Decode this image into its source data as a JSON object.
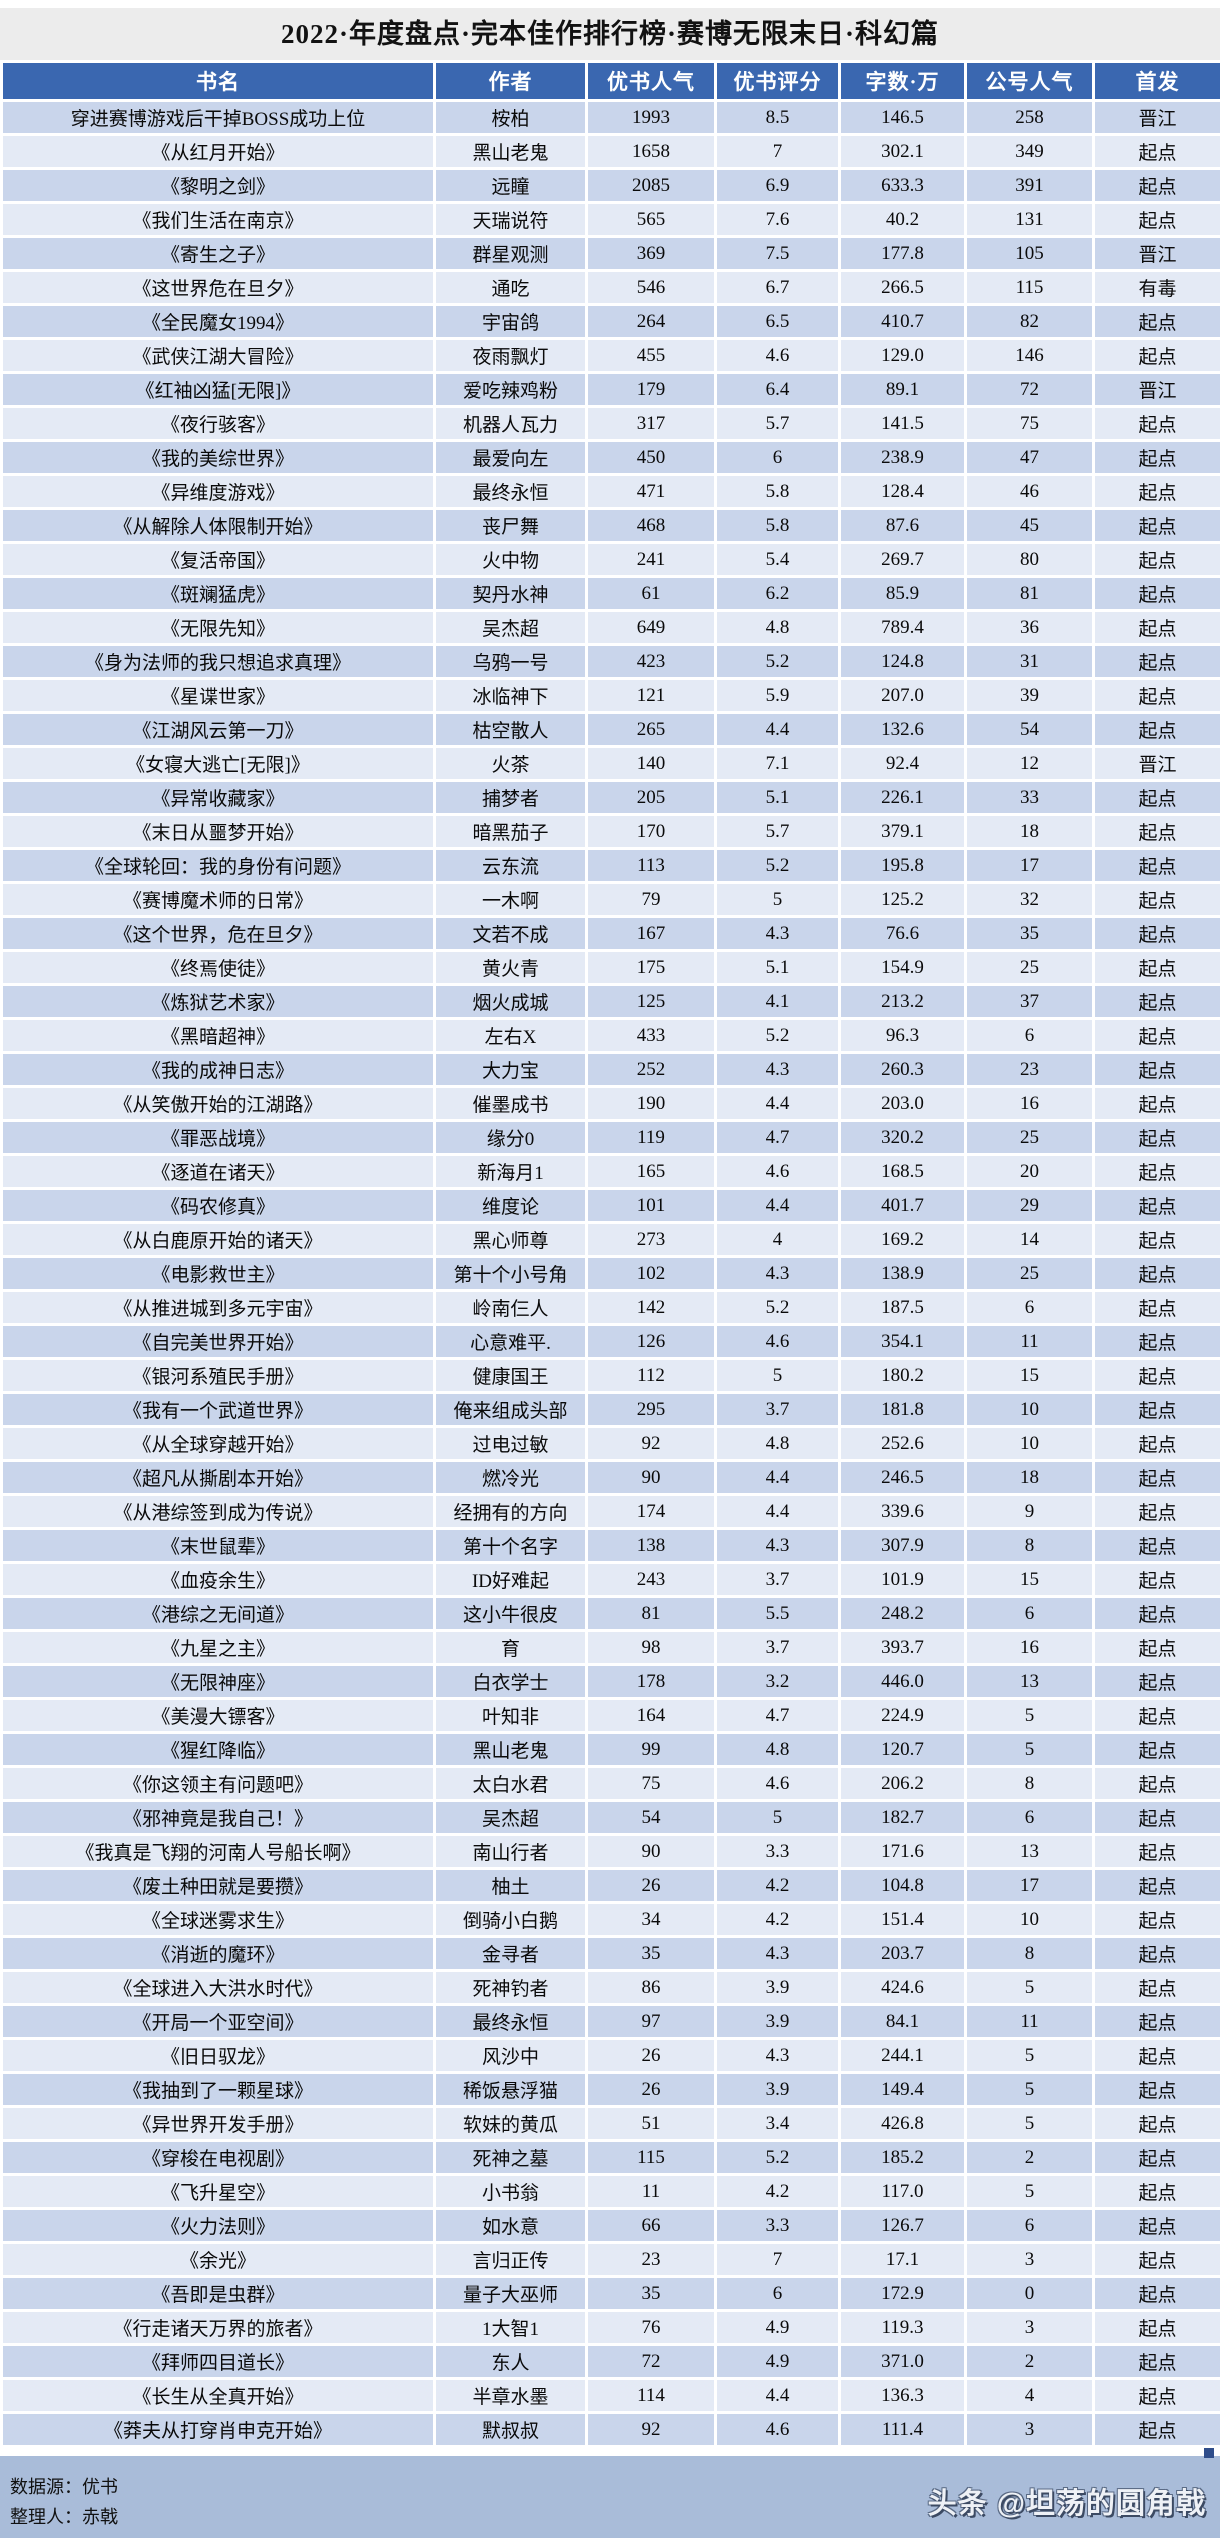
{
  "title": "2022·年度盘点·完本佳作排行榜·赛博无限末日·科幻篇",
  "colors": {
    "header_bg": "#3a67b0",
    "row_odd": "#c9d5eb",
    "row_even": "#e4eaf5",
    "title_bg": "#ececec",
    "footer_bg": "#a9bcd9"
  },
  "table": {
    "columns": [
      "书名",
      "作者",
      "优书人气",
      "优书评分",
      "字数·万",
      "公号人气",
      "首发"
    ],
    "rows": [
      [
        "穿进赛博游戏后干掉BOSS成功上位",
        "桉柏",
        "1993",
        "8.5",
        "146.5",
        "258",
        "晋江"
      ],
      [
        "《从红月开始》",
        "黑山老鬼",
        "1658",
        "7",
        "302.1",
        "349",
        "起点"
      ],
      [
        "《黎明之剑》",
        "远瞳",
        "2085",
        "6.9",
        "633.3",
        "391",
        "起点"
      ],
      [
        "《我们生活在南京》",
        "天瑞说符",
        "565",
        "7.6",
        "40.2",
        "131",
        "起点"
      ],
      [
        "《寄生之子》",
        "群星观测",
        "369",
        "7.5",
        "177.8",
        "105",
        "晋江"
      ],
      [
        "《这世界危在旦夕》",
        "通吃",
        "546",
        "6.7",
        "266.5",
        "115",
        "有毒"
      ],
      [
        "《全民魔女1994》",
        "宇宙鸽",
        "264",
        "6.5",
        "410.7",
        "82",
        "起点"
      ],
      [
        "《武侠江湖大冒险》",
        "夜雨飘灯",
        "455",
        "4.6",
        "129.0",
        "146",
        "起点"
      ],
      [
        "《红袖凶猛[无限]》",
        "爱吃辣鸡粉",
        "179",
        "6.4",
        "89.1",
        "72",
        "晋江"
      ],
      [
        "《夜行骇客》",
        "机器人瓦力",
        "317",
        "5.7",
        "141.5",
        "75",
        "起点"
      ],
      [
        "《我的美综世界》",
        "最爱向左",
        "450",
        "6",
        "238.9",
        "47",
        "起点"
      ],
      [
        "《异维度游戏》",
        "最终永恒",
        "471",
        "5.8",
        "128.4",
        "46",
        "起点"
      ],
      [
        "《从解除人体限制开始》",
        "丧尸舞",
        "468",
        "5.8",
        "87.6",
        "45",
        "起点"
      ],
      [
        "《复活帝国》",
        "火中物",
        "241",
        "5.4",
        "269.7",
        "80",
        "起点"
      ],
      [
        "《斑斓猛虎》",
        "契丹水神",
        "61",
        "6.2",
        "85.9",
        "81",
        "起点"
      ],
      [
        "《无限先知》",
        "吴杰超",
        "649",
        "4.8",
        "789.4",
        "36",
        "起点"
      ],
      [
        "《身为法师的我只想追求真理》",
        "乌鸦一号",
        "423",
        "5.2",
        "124.8",
        "31",
        "起点"
      ],
      [
        "《星谍世家》",
        "冰临神下",
        "121",
        "5.9",
        "207.0",
        "39",
        "起点"
      ],
      [
        "《江湖风云第一刀》",
        "枯空散人",
        "265",
        "4.4",
        "132.6",
        "54",
        "起点"
      ],
      [
        "《女寝大逃亡[无限]》",
        "火茶",
        "140",
        "7.1",
        "92.4",
        "12",
        "晋江"
      ],
      [
        "《异常收藏家》",
        "捕梦者",
        "205",
        "5.1",
        "226.1",
        "33",
        "起点"
      ],
      [
        "《末日从噩梦开始》",
        "暗黑茄子",
        "170",
        "5.7",
        "379.1",
        "18",
        "起点"
      ],
      [
        "《全球轮回：我的身份有问题》",
        "云东流",
        "113",
        "5.2",
        "195.8",
        "17",
        "起点"
      ],
      [
        "《赛博魔术师的日常》",
        "一木啊",
        "79",
        "5",
        "125.2",
        "32",
        "起点"
      ],
      [
        "《这个世界，危在旦夕》",
        "文若不成",
        "167",
        "4.3",
        "76.6",
        "35",
        "起点"
      ],
      [
        "《终焉使徒》",
        "黄火青",
        "175",
        "5.1",
        "154.9",
        "25",
        "起点"
      ],
      [
        "《炼狱艺术家》",
        "烟火成城",
        "125",
        "4.1",
        "213.2",
        "37",
        "起点"
      ],
      [
        "《黑暗超神》",
        "左右X",
        "433",
        "5.2",
        "96.3",
        "6",
        "起点"
      ],
      [
        "《我的成神日志》",
        "大力宝",
        "252",
        "4.3",
        "260.3",
        "23",
        "起点"
      ],
      [
        "《从笑傲开始的江湖路》",
        "催墨成书",
        "190",
        "4.4",
        "203.0",
        "16",
        "起点"
      ],
      [
        "《罪恶战境》",
        "缘分0",
        "119",
        "4.7",
        "320.2",
        "25",
        "起点"
      ],
      [
        "《逐道在诸天》",
        "新海月1",
        "165",
        "4.6",
        "168.5",
        "20",
        "起点"
      ],
      [
        "《码农修真》",
        "维度论",
        "101",
        "4.4",
        "401.7",
        "29",
        "起点"
      ],
      [
        "《从白鹿原开始的诸天》",
        "黑心师尊",
        "273",
        "4",
        "169.2",
        "14",
        "起点"
      ],
      [
        "《电影救世主》",
        "第十个小号角",
        "102",
        "4.3",
        "138.9",
        "25",
        "起点"
      ],
      [
        "《从推进城到多元宇宙》",
        "岭南仨人",
        "142",
        "5.2",
        "187.5",
        "6",
        "起点"
      ],
      [
        "《自完美世界开始》",
        "心意难平.",
        "126",
        "4.6",
        "354.1",
        "11",
        "起点"
      ],
      [
        "《银河系殖民手册》",
        "健康国王",
        "112",
        "5",
        "180.2",
        "15",
        "起点"
      ],
      [
        "《我有一个武道世界》",
        "俺来组成头部",
        "295",
        "3.7",
        "181.8",
        "10",
        "起点"
      ],
      [
        "《从全球穿越开始》",
        "过电过敏",
        "92",
        "4.8",
        "252.6",
        "10",
        "起点"
      ],
      [
        "《超凡从撕剧本开始》",
        "燃冷光",
        "90",
        "4.4",
        "246.5",
        "18",
        "起点"
      ],
      [
        "《从港综签到成为传说》",
        "经拥有的方向",
        "174",
        "4.4",
        "339.6",
        "9",
        "起点"
      ],
      [
        "《末世鼠辈》",
        "第十个名字",
        "138",
        "4.3",
        "307.9",
        "8",
        "起点"
      ],
      [
        "《血疫余生》",
        "ID好难起",
        "243",
        "3.7",
        "101.9",
        "15",
        "起点"
      ],
      [
        "《港综之无间道》",
        "这小牛很皮",
        "81",
        "5.5",
        "248.2",
        "6",
        "起点"
      ],
      [
        "《九星之主》",
        "育",
        "98",
        "3.7",
        "393.7",
        "16",
        "起点"
      ],
      [
        "《无限神座》",
        "白衣学士",
        "178",
        "3.2",
        "446.0",
        "13",
        "起点"
      ],
      [
        "《美漫大镖客》",
        "叶知非",
        "164",
        "4.7",
        "224.9",
        "5",
        "起点"
      ],
      [
        "《猩红降临》",
        "黑山老鬼",
        "99",
        "4.8",
        "120.7",
        "5",
        "起点"
      ],
      [
        "《你这领主有问题吧》",
        "太白水君",
        "75",
        "4.6",
        "206.2",
        "8",
        "起点"
      ],
      [
        "《邪神竟是我自己！》",
        "吴杰超",
        "54",
        "5",
        "182.7",
        "6",
        "起点"
      ],
      [
        "《我真是飞翔的河南人号船长啊》",
        "南山行者",
        "90",
        "3.3",
        "171.6",
        "13",
        "起点"
      ],
      [
        "《废土种田就是要攒》",
        "柚土",
        "26",
        "4.2",
        "104.8",
        "17",
        "起点"
      ],
      [
        "《全球迷雾求生》",
        "倒骑小白鹅",
        "34",
        "4.2",
        "151.4",
        "10",
        "起点"
      ],
      [
        "《消逝的魔环》",
        "金寻者",
        "35",
        "4.3",
        "203.7",
        "8",
        "起点"
      ],
      [
        "《全球进入大洪水时代》",
        "死神钓者",
        "86",
        "3.9",
        "424.6",
        "5",
        "起点"
      ],
      [
        "《开局一个亚空间》",
        "最终永恒",
        "97",
        "3.9",
        "84.1",
        "11",
        "起点"
      ],
      [
        "《旧日驭龙》",
        "风沙中",
        "26",
        "4.3",
        "244.1",
        "5",
        "起点"
      ],
      [
        "《我抽到了一颗星球》",
        "稀饭悬浮猫",
        "26",
        "3.9",
        "149.4",
        "5",
        "起点"
      ],
      [
        "《异世界开发手册》",
        "软妹的黄瓜",
        "51",
        "3.4",
        "426.8",
        "5",
        "起点"
      ],
      [
        "《穿梭在电视剧》",
        "死神之墓",
        "115",
        "5.2",
        "185.2",
        "2",
        "起点"
      ],
      [
        "《飞升星空》",
        "小书翁",
        "11",
        "4.2",
        "117.0",
        "5",
        "起点"
      ],
      [
        "《火力法则》",
        "如水意",
        "66",
        "3.3",
        "126.7",
        "6",
        "起点"
      ],
      [
        "《余光》",
        "言归正传",
        "23",
        "7",
        "17.1",
        "3",
        "起点"
      ],
      [
        "《吾即是虫群》",
        "量子大巫师",
        "35",
        "6",
        "172.9",
        "0",
        "起点"
      ],
      [
        "《行走诸天万界的旅者》",
        "1大智1",
        "76",
        "4.9",
        "119.3",
        "3",
        "起点"
      ],
      [
        "《拜师四目道长》",
        "东人",
        "72",
        "4.9",
        "371.0",
        "2",
        "起点"
      ],
      [
        "《长生从全真开始》",
        "半章水墨",
        "114",
        "4.4",
        "136.3",
        "4",
        "起点"
      ],
      [
        "《莽夫从打穿肖申克开始》",
        "默叔叔",
        "92",
        "4.6",
        "111.4",
        "3",
        "起点"
      ]
    ]
  },
  "footer": {
    "source_label": "数据源：优书",
    "editor_label": "整理人：赤戟"
  },
  "watermark": "头条 @坦荡的圆角戟"
}
